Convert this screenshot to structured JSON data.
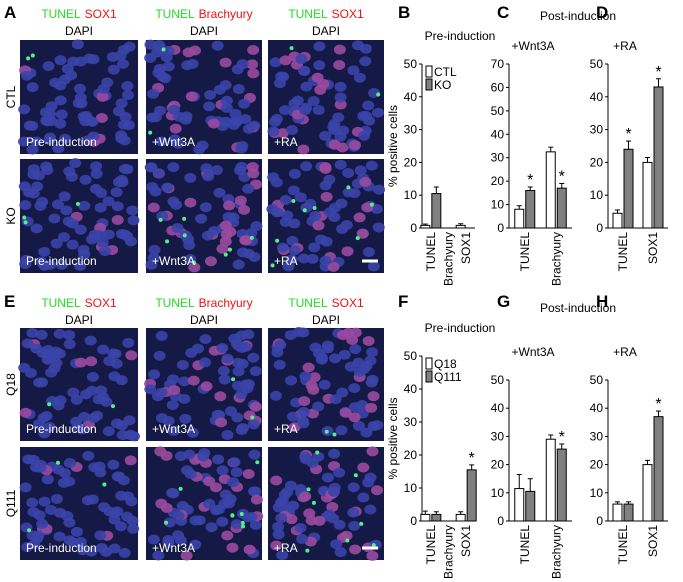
{
  "panel_letters": [
    "A",
    "B",
    "C",
    "D",
    "E",
    "F",
    "G",
    "H"
  ],
  "image_grids": [
    {
      "columns": [
        {
          "stains": [
            "TUNEL",
            "SOX1"
          ],
          "counterstain": "DAPI"
        },
        {
          "stains": [
            "TUNEL",
            "Brachyury"
          ],
          "counterstain": "DAPI"
        },
        {
          "stains": [
            "TUNEL",
            "SOX1"
          ],
          "counterstain": "DAPI"
        }
      ],
      "rows": [
        "CTL",
        "KO"
      ],
      "conditions": [
        "Pre-induction",
        "+Wnt3A",
        "+RA"
      ]
    },
    {
      "columns": [
        {
          "stains": [
            "TUNEL",
            "SOX1"
          ],
          "counterstain": "DAPI"
        },
        {
          "stains": [
            "TUNEL",
            "Brachyury"
          ],
          "counterstain": "DAPI"
        },
        {
          "stains": [
            "TUNEL",
            "SOX1"
          ],
          "counterstain": "DAPI"
        }
      ],
      "rows": [
        "Q18",
        "Q111"
      ],
      "conditions": [
        "Pre-induction",
        "+Wnt3A",
        "+RA"
      ]
    }
  ],
  "chart_data": [
    {
      "type": "bar",
      "title": "Pre-induction",
      "ylabel": "% positive cells",
      "legend": "upper left",
      "categories": [
        "TUNEL",
        "Brachyury",
        "SOX1"
      ],
      "ylim": [
        0,
        50
      ],
      "yticks": [
        0,
        10,
        20,
        30,
        40,
        50
      ],
      "series": [
        {
          "name": "CTL",
          "color": "#ffffff",
          "values": [
            0.8,
            0,
            0.8
          ],
          "errors": [
            0.4,
            0,
            0.5
          ],
          "labels": [
            null,
            null,
            null
          ]
        },
        {
          "name": "KO",
          "color": "#808080",
          "values": [
            10.5,
            0,
            0
          ],
          "errors": [
            2,
            0,
            0
          ],
          "labels": [
            null,
            null,
            null
          ]
        }
      ]
    },
    {
      "type": "bar",
      "header": "Post-induction",
      "title": "+Wnt3A",
      "categories": [
        "TUNEL",
        "Brachyury"
      ],
      "ylim": [
        0,
        70
      ],
      "yticks": [
        0,
        10,
        20,
        30,
        40,
        50,
        60,
        70
      ],
      "series": [
        {
          "color": "#ffffff",
          "values": [
            8,
            32.5
          ],
          "errors": [
            1.5,
            2
          ],
          "labels": [
            null,
            null
          ]
        },
        {
          "color": "#808080",
          "values": [
            16,
            17
          ],
          "errors": [
            1.5,
            2
          ],
          "labels": [
            "*",
            "*"
          ]
        }
      ]
    },
    {
      "type": "bar",
      "title": "+RA",
      "categories": [
        "TUNEL",
        "SOX1"
      ],
      "ylim": [
        0,
        50
      ],
      "yticks": [
        0,
        10,
        20,
        30,
        40,
        50
      ],
      "series": [
        {
          "color": "#ffffff",
          "values": [
            4.5,
            20
          ],
          "errors": [
            1,
            1.5
          ],
          "labels": [
            null,
            null
          ]
        },
        {
          "color": "#808080",
          "values": [
            24,
            43
          ],
          "errors": [
            2.5,
            2.5
          ],
          "labels": [
            "*",
            "*"
          ]
        }
      ]
    },
    {
      "type": "bar",
      "title": "Pre-induction",
      "ylabel": "% positive cells",
      "legend": "upper left",
      "categories": [
        "TUNEL",
        "Brachyury",
        "SOX1"
      ],
      "ylim": [
        0,
        50
      ],
      "yticks": [
        0,
        10,
        20,
        30,
        40,
        50
      ],
      "series": [
        {
          "name": "Q18",
          "color": "#ffffff",
          "values": [
            2,
            0,
            2
          ],
          "errors": [
            1,
            0,
            0.8
          ],
          "labels": [
            null,
            null,
            null
          ]
        },
        {
          "name": "Q111",
          "color": "#808080",
          "values": [
            2,
            0,
            15.5
          ],
          "errors": [
            0.8,
            0,
            1.5
          ],
          "labels": [
            null,
            null,
            "*"
          ]
        }
      ]
    },
    {
      "type": "bar",
      "header": "Post-induction",
      "title": "+Wnt3A",
      "categories": [
        "TUNEL",
        "Brachyury"
      ],
      "ylim": [
        0,
        50
      ],
      "yticks": [
        0,
        10,
        20,
        30,
        40,
        50
      ],
      "series": [
        {
          "color": "#ffffff",
          "values": [
            11.5,
            29
          ],
          "errors": [
            5,
            1.5
          ],
          "labels": [
            null,
            null
          ]
        },
        {
          "color": "#808080",
          "values": [
            10.5,
            25.5
          ],
          "errors": [
            4.5,
            1.8
          ],
          "labels": [
            null,
            "*"
          ]
        }
      ]
    },
    {
      "type": "bar",
      "title": "+RA",
      "categories": [
        "TUNEL",
        "SOX1"
      ],
      "ylim": [
        0,
        50
      ],
      "yticks": [
        0,
        10,
        20,
        30,
        40,
        50
      ],
      "series": [
        {
          "color": "#ffffff",
          "values": [
            6,
            20
          ],
          "errors": [
            0.8,
            1.5
          ],
          "labels": [
            null,
            null
          ]
        },
        {
          "color": "#808080",
          "values": [
            6,
            37
          ],
          "errors": [
            0.8,
            2
          ],
          "labels": [
            null,
            "*"
          ]
        }
      ]
    }
  ]
}
